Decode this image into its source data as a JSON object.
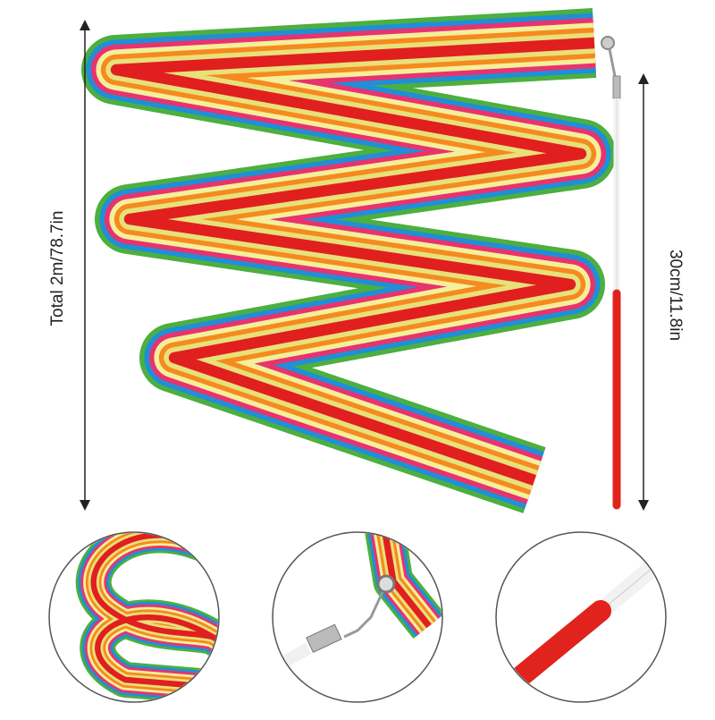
{
  "labels": {
    "ribbon_length": "Total 2m/78.7in",
    "stick_length": "30cm/11.8in"
  }
}
